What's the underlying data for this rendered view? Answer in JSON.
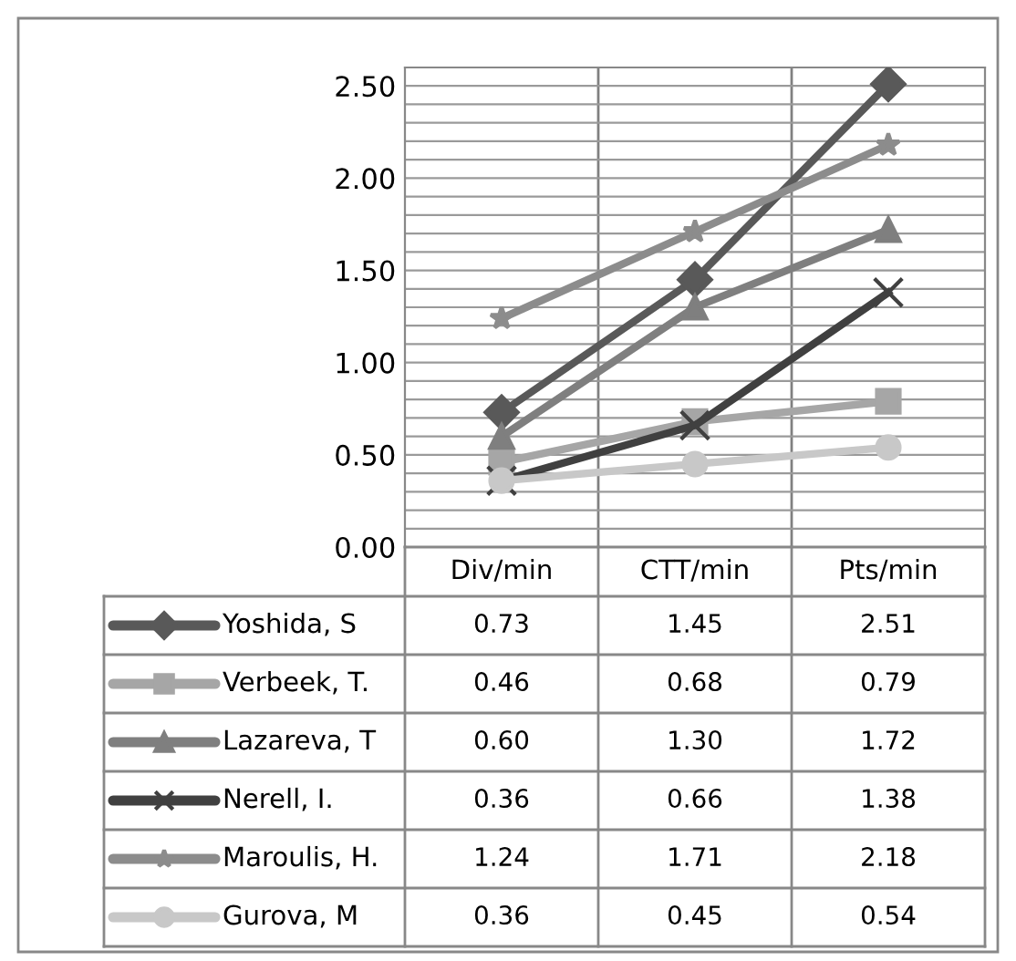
{
  "chart_data": {
    "type": "line",
    "categories": [
      "Div/min",
      "CTT/min",
      "Pts/min"
    ],
    "series": [
      {
        "name": "Yoshida, S",
        "color": "#595959",
        "marker": "diamond",
        "values": [
          0.73,
          1.45,
          2.51
        ],
        "value_labels": [
          "0.73",
          "1.45",
          "2.51"
        ]
      },
      {
        "name": "Verbeek, T.",
        "color": "#a6a6a6",
        "marker": "square",
        "values": [
          0.46,
          0.68,
          0.79
        ],
        "value_labels": [
          "0.46",
          "0.68",
          "0.79"
        ]
      },
      {
        "name": "Lazareva, T",
        "color": "#7f7f7f",
        "marker": "triangle",
        "values": [
          0.6,
          1.3,
          1.72
        ],
        "value_labels": [
          "0.60",
          "1.30",
          "1.72"
        ]
      },
      {
        "name": "Nerell, I.",
        "color": "#404040",
        "marker": "cross",
        "values": [
          0.36,
          0.66,
          1.38
        ],
        "value_labels": [
          "0.36",
          "0.66",
          "1.38"
        ]
      },
      {
        "name": "Maroulis, H.",
        "color": "#8c8c8c",
        "marker": "star",
        "values": [
          1.24,
          1.71,
          2.18
        ],
        "value_labels": [
          "1.24",
          "1.71",
          "2.18"
        ]
      },
      {
        "name": "Gurova, M",
        "color": "#c8c8c8",
        "marker": "circle",
        "values": [
          0.36,
          0.45,
          0.54
        ],
        "value_labels": [
          "0.36",
          "0.45",
          "0.54"
        ]
      }
    ],
    "ylim": [
      0,
      2.6
    ],
    "yticks": [
      {
        "value": 0.0,
        "label": "0.00"
      },
      {
        "value": 0.1,
        "label": null
      },
      {
        "value": 0.2,
        "label": null
      },
      {
        "value": 0.3,
        "label": null
      },
      {
        "value": 0.4,
        "label": null
      },
      {
        "value": 0.5,
        "label": "0.50"
      },
      {
        "value": 0.6,
        "label": null
      },
      {
        "value": 0.7,
        "label": null
      },
      {
        "value": 0.8,
        "label": null
      },
      {
        "value": 0.9,
        "label": null
      },
      {
        "value": 1.0,
        "label": "1.00"
      },
      {
        "value": 1.1,
        "label": null
      },
      {
        "value": 1.2,
        "label": null
      },
      {
        "value": 1.3,
        "label": null
      },
      {
        "value": 1.4,
        "label": null
      },
      {
        "value": 1.5,
        "label": "1.50"
      },
      {
        "value": 1.6,
        "label": null
      },
      {
        "value": 1.7,
        "label": null
      },
      {
        "value": 1.8,
        "label": null
      },
      {
        "value": 1.9,
        "label": null
      },
      {
        "value": 2.0,
        "label": "2.00"
      },
      {
        "value": 2.1,
        "label": null
      },
      {
        "value": 2.2,
        "label": null
      },
      {
        "value": 2.3,
        "label": null
      },
      {
        "value": 2.4,
        "label": null
      },
      {
        "value": 2.5,
        "label": "2.50"
      },
      {
        "value": 2.6,
        "label": null
      }
    ],
    "grid": true,
    "legend": "bottom"
  }
}
